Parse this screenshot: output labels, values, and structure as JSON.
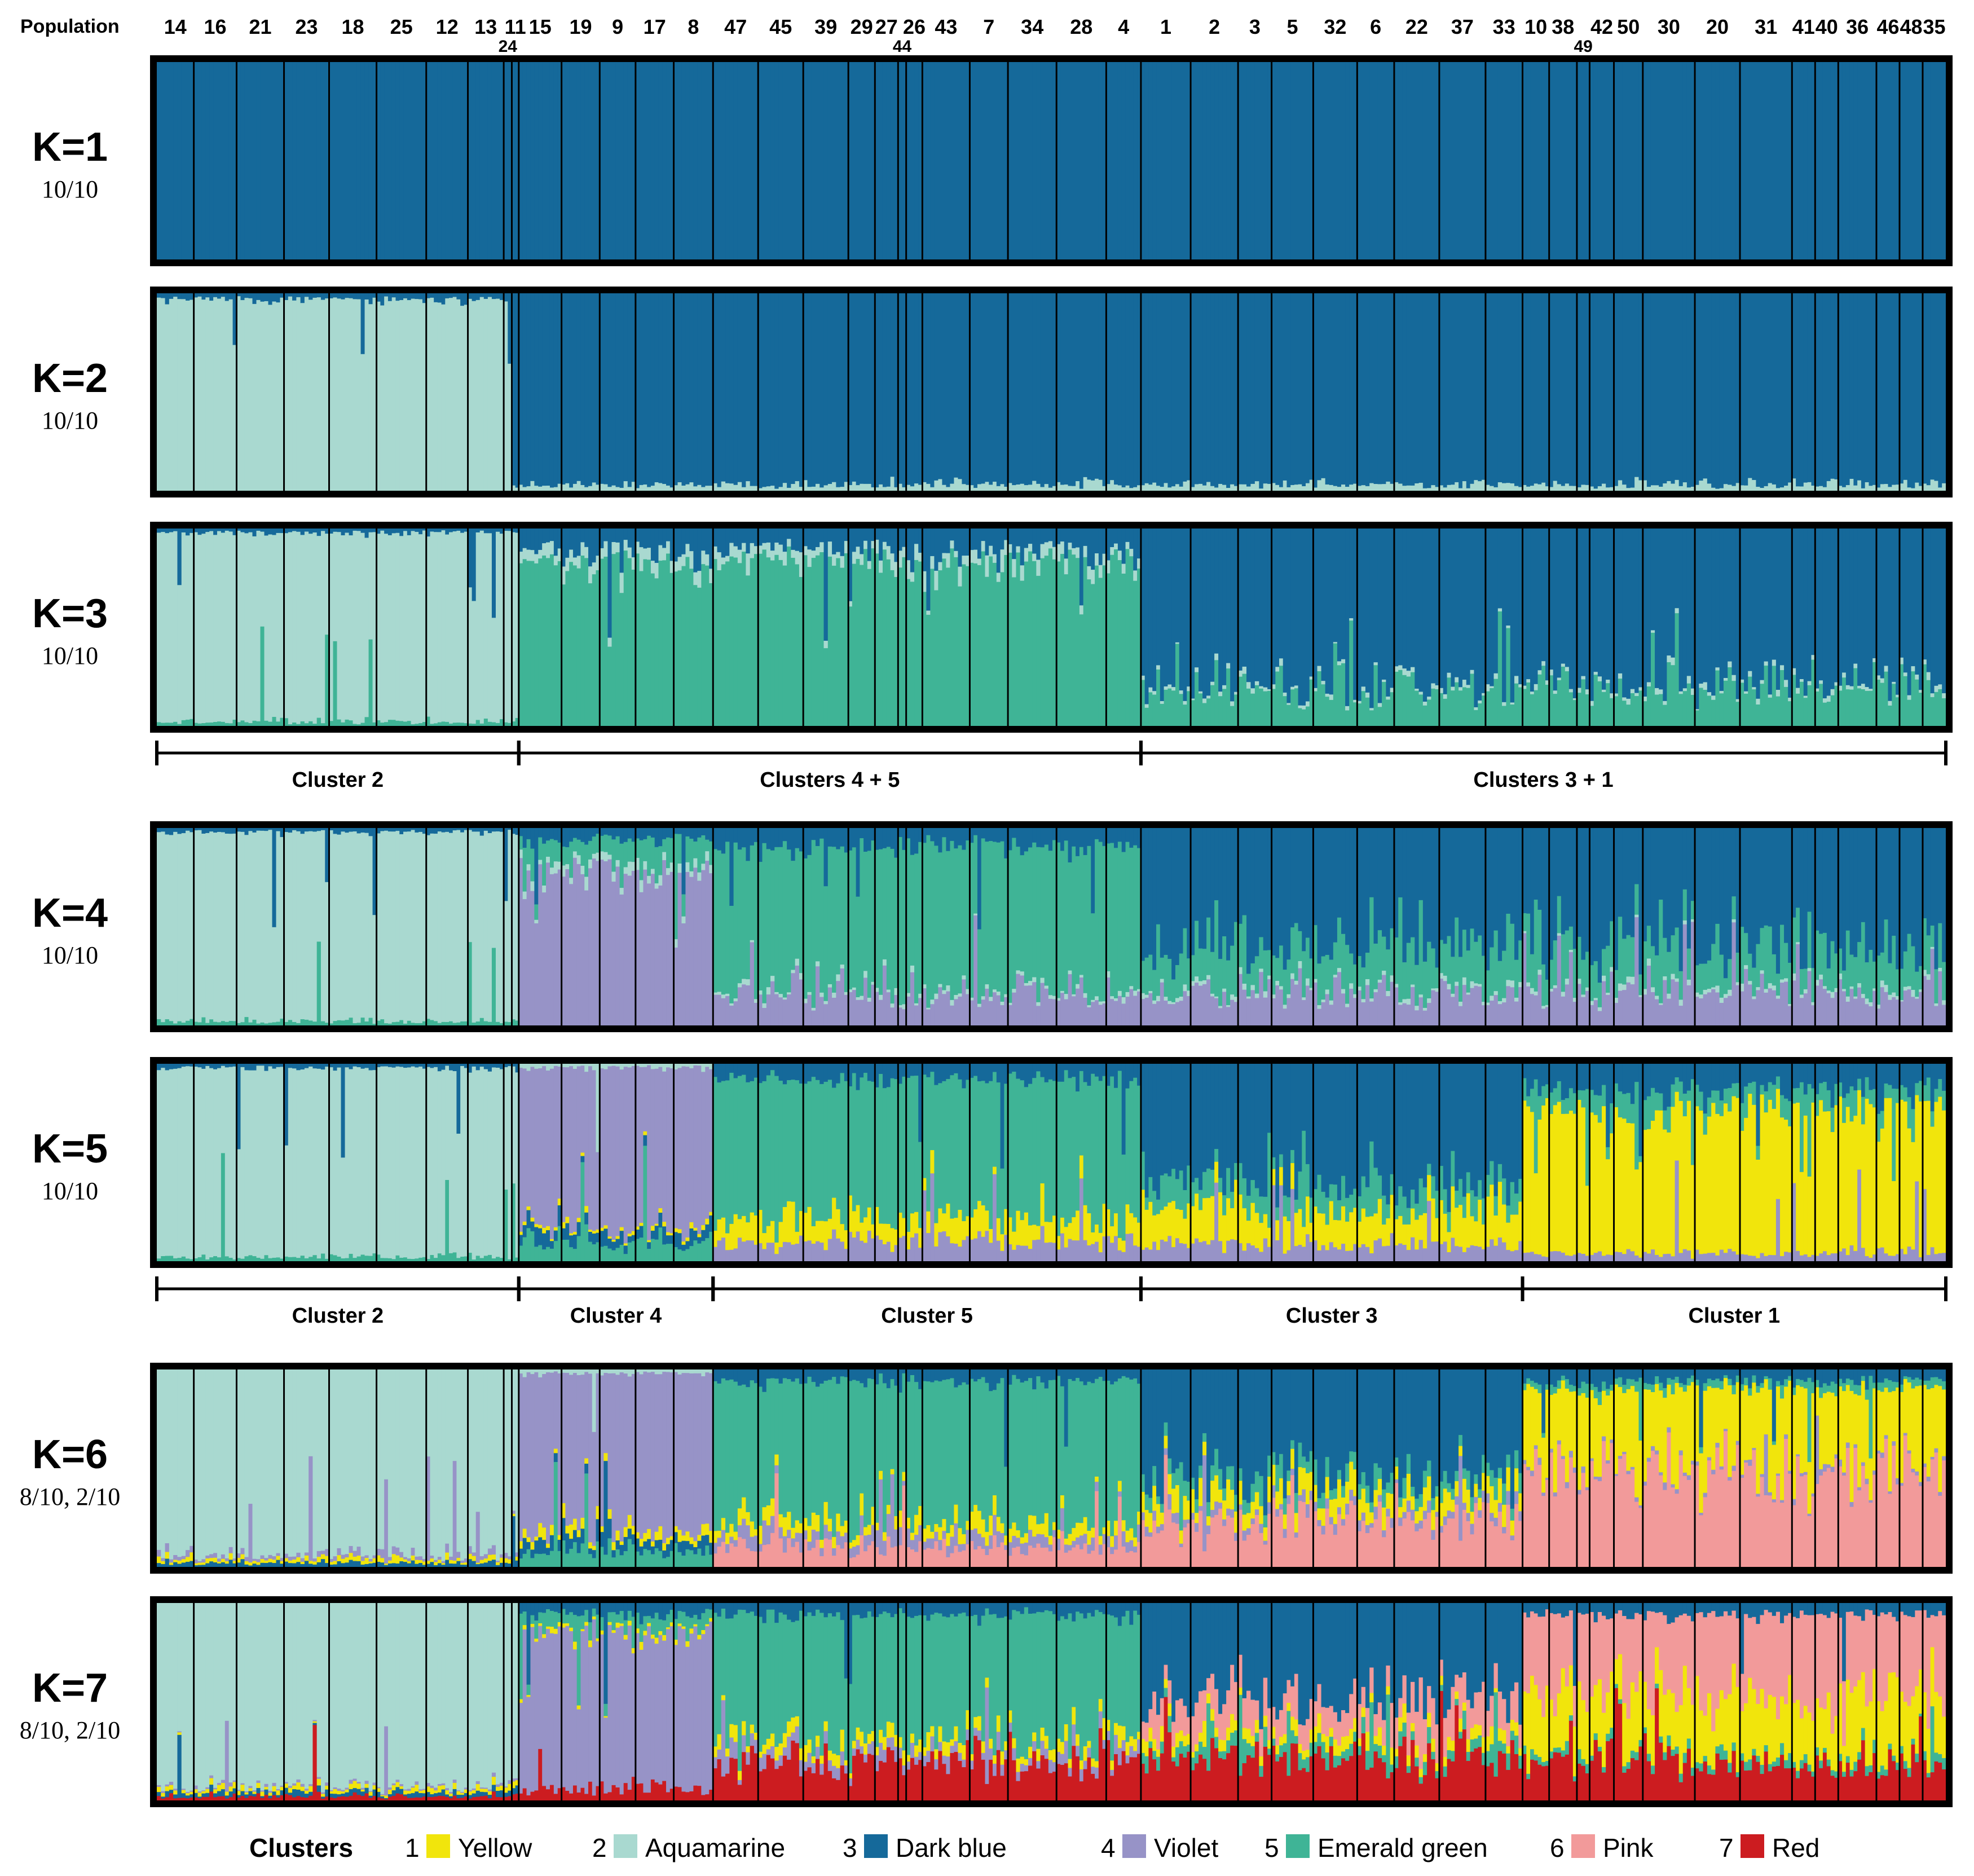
{
  "header_label": "Population",
  "populations": [
    {
      "id": "14",
      "w": 64
    },
    {
      "id": "16",
      "w": 74
    },
    {
      "id": "21",
      "w": 82
    },
    {
      "id": "23",
      "w": 78
    },
    {
      "id": "18",
      "w": 82
    },
    {
      "id": "25",
      "w": 86
    },
    {
      "id": "12",
      "w": 72
    },
    {
      "id": "13",
      "w": 62
    },
    {
      "id": "24",
      "w": 14
    },
    {
      "id": "11",
      "w": 12
    },
    {
      "id": "15",
      "w": 74
    },
    {
      "id": "19",
      "w": 66
    },
    {
      "id": "9",
      "w": 62
    },
    {
      "id": "17",
      "w": 66
    },
    {
      "id": "8",
      "w": 68
    },
    {
      "id": "47",
      "w": 78
    },
    {
      "id": "45",
      "w": 78
    },
    {
      "id": "39",
      "w": 78
    },
    {
      "id": "29",
      "w": 46
    },
    {
      "id": "27",
      "w": 40
    },
    {
      "id": "44",
      "w": 14
    },
    {
      "id": "26",
      "w": 28
    },
    {
      "id": "43",
      "w": 82
    },
    {
      "id": "7",
      "w": 66
    },
    {
      "id": "34",
      "w": 84
    },
    {
      "id": "28",
      "w": 86
    },
    {
      "id": "4",
      "w": 60
    },
    {
      "id": "1",
      "w": 86
    },
    {
      "id": "2",
      "w": 82
    },
    {
      "id": "3",
      "w": 58
    },
    {
      "id": "5",
      "w": 72
    },
    {
      "id": "32",
      "w": 76
    },
    {
      "id": "6",
      "w": 64
    },
    {
      "id": "22",
      "w": 78
    },
    {
      "id": "37",
      "w": 80
    },
    {
      "id": "33",
      "w": 64
    },
    {
      "id": "10",
      "w": 46
    },
    {
      "id": "38",
      "w": 48
    },
    {
      "id": "49",
      "w": 22
    },
    {
      "id": "42",
      "w": 42
    },
    {
      "id": "50",
      "w": 50
    },
    {
      "id": "30",
      "w": 90
    },
    {
      "id": "20",
      "w": 78
    },
    {
      "id": "31",
      "w": 90
    },
    {
      "id": "41",
      "w": 40
    },
    {
      "id": "40",
      "w": 40
    },
    {
      "id": "36",
      "w": 66
    },
    {
      "id": "46",
      "w": 40
    },
    {
      "id": "48",
      "w": 40
    },
    {
      "id": "35",
      "w": 40
    }
  ],
  "colors": {
    "1": "#f1e50c",
    "2": "#a9d9d0",
    "3": "#15699a",
    "4": "#9793c7",
    "5": "#3fb496",
    "6": "#f29a9a",
    "7": "#cc1c20"
  },
  "panels": [
    {
      "k": "K=1",
      "runs": "10/10"
    },
    {
      "k": "K=2",
      "runs": "10/10"
    },
    {
      "k": "K=3",
      "runs": "10/10"
    },
    {
      "k": "K=4",
      "runs": "10/10"
    },
    {
      "k": "K=5",
      "runs": "10/10"
    },
    {
      "k": "K=6",
      "runs": "8/10, 2/10"
    },
    {
      "k": "K=7",
      "runs": "8/10, 2/10"
    }
  ],
  "cluster_brackets_k3": [
    {
      "label": "Cluster 2",
      "from": "14",
      "to": "11"
    },
    {
      "label": "Clusters 4 + 5",
      "from": "15",
      "to": "4"
    },
    {
      "label": "Clusters 3 + 1",
      "from": "1",
      "to": "35"
    }
  ],
  "cluster_brackets_k5": [
    {
      "label": "Cluster 2",
      "from": "14",
      "to": "11"
    },
    {
      "label": "Cluster 4",
      "from": "15",
      "to": "8"
    },
    {
      "label": "Cluster 5",
      "from": "47",
      "to": "4"
    },
    {
      "label": "Cluster 3",
      "from": "1",
      "to": "33"
    },
    {
      "label": "Cluster 1",
      "from": "10",
      "to": "35"
    }
  ],
  "legend": {
    "title": "Clusters",
    "items": [
      {
        "num": "1",
        "name": "Yellow",
        "color": "#f1e50c"
      },
      {
        "num": "2",
        "name": "Aquamarine",
        "color": "#a9d9d0"
      },
      {
        "num": "3",
        "name": "Dark blue",
        "color": "#15699a"
      },
      {
        "num": "4",
        "name": "Violet",
        "color": "#9793c7"
      },
      {
        "num": "5",
        "name": "Emerald green",
        "color": "#3fb496"
      },
      {
        "num": "6",
        "name": "Pink",
        "color": "#f29a9a"
      },
      {
        "num": "7",
        "name": "Red",
        "color": "#cc1c20"
      }
    ]
  },
  "chart_data": {
    "type": "bar",
    "description_kind": "stacked ancestry proportions (STRUCTURE) per population, K = 1 to 7",
    "categories": [
      "14",
      "16",
      "21",
      "23",
      "18",
      "25",
      "12",
      "13",
      "24",
      "11",
      "15",
      "19",
      "9",
      "17",
      "8",
      "47",
      "45",
      "39",
      "29",
      "27",
      "44",
      "26",
      "43",
      "7",
      "34",
      "28",
      "4",
      "1",
      "2",
      "3",
      "5",
      "32",
      "6",
      "22",
      "37",
      "33",
      "10",
      "38",
      "49",
      "42",
      "50",
      "30",
      "20",
      "31",
      "41",
      "40",
      "36",
      "46",
      "48",
      "35"
    ],
    "ylim": [
      0,
      1
    ],
    "k_panels": [
      {
        "k": 1,
        "proportions": {
          "3": 1.0
        }
      },
      {
        "k": 2,
        "groups": [
          {
            "pops": [
              "14",
              "16",
              "21",
              "23",
              "18",
              "25",
              "12",
              "13",
              "24"
            ],
            "mix": {
              "2": 0.97,
              "3": 0.03
            }
          },
          {
            "pops": [
              "11",
              "15",
              "19",
              "9",
              "17",
              "8",
              "47",
              "45",
              "39",
              "29",
              "27",
              "44",
              "26",
              "43",
              "7",
              "34",
              "28",
              "4",
              "1",
              "2",
              "3",
              "5",
              "32",
              "6",
              "22",
              "37",
              "33",
              "10",
              "38",
              "49",
              "42",
              "50",
              "30",
              "20",
              "31",
              "41",
              "40",
              "36",
              "46",
              "48",
              "35"
            ],
            "mix": {
              "3": 0.97,
              "2": 0.03
            }
          }
        ]
      },
      {
        "k": 3,
        "groups": [
          {
            "pops": [
              "14",
              "16",
              "21",
              "23",
              "18",
              "25",
              "12",
              "13",
              "24",
              "11"
            ],
            "mix": {
              "2": 0.96,
              "3": 0.02,
              "5": 0.02
            }
          },
          {
            "pops": [
              "15",
              "19",
              "9",
              "17",
              "8",
              "47",
              "45",
              "39",
              "29",
              "27",
              "44",
              "26",
              "43",
              "7",
              "34",
              "28",
              "4"
            ],
            "mix": {
              "5": 0.82,
              "3": 0.12,
              "2": 0.06
            }
          },
          {
            "pops": [
              "1",
              "2",
              "3",
              "5",
              "32",
              "6",
              "22",
              "37",
              "33",
              "10",
              "38",
              "49",
              "42",
              "50",
              "30",
              "20",
              "31",
              "41",
              "40",
              "36",
              "46",
              "48",
              "35"
            ],
            "mix": {
              "3": 0.8,
              "5": 0.18,
              "2": 0.02
            }
          }
        ]
      },
      {
        "k": 4,
        "groups": [
          {
            "pops": [
              "14",
              "16",
              "21",
              "23",
              "18",
              "25",
              "12",
              "13",
              "24",
              "11"
            ],
            "mix": {
              "2": 0.96,
              "5": 0.02,
              "3": 0.02
            }
          },
          {
            "pops": [
              "15",
              "19",
              "9",
              "17",
              "8"
            ],
            "mix": {
              "4": 0.78,
              "5": 0.12,
              "3": 0.06,
              "2": 0.04
            }
          },
          {
            "pops": [
              "47",
              "45",
              "39",
              "29",
              "27",
              "44",
              "26",
              "43",
              "7",
              "34",
              "28",
              "4"
            ],
            "mix": {
              "5": 0.72,
              "4": 0.16,
              "3": 0.1,
              "2": 0.02
            }
          },
          {
            "pops": [
              "1",
              "2",
              "3",
              "5",
              "32",
              "6",
              "22",
              "37",
              "33",
              "10",
              "38",
              "49",
              "42",
              "50",
              "30",
              "20",
              "31",
              "41",
              "40",
              "36",
              "46",
              "48",
              "35"
            ],
            "mix": {
              "3": 0.62,
              "5": 0.2,
              "4": 0.16,
              "2": 0.02
            }
          }
        ]
      },
      {
        "k": 5,
        "groups": [
          {
            "pops": [
              "14",
              "16",
              "21",
              "23",
              "18",
              "25",
              "12",
              "13",
              "24",
              "11"
            ],
            "mix": {
              "2": 0.96,
              "5": 0.02,
              "3": 0.02
            }
          },
          {
            "pops": [
              "15",
              "19",
              "9",
              "17",
              "8"
            ],
            "mix": {
              "4": 0.8,
              "5": 0.1,
              "3": 0.06,
              "1": 0.02,
              "2": 0.02
            }
          },
          {
            "pops": [
              "47",
              "45",
              "39",
              "29",
              "27",
              "44",
              "26",
              "43",
              "7",
              "34",
              "28",
              "4"
            ],
            "mix": {
              "5": 0.7,
              "1": 0.12,
              "4": 0.1,
              "3": 0.08
            }
          },
          {
            "pops": [
              "1",
              "2",
              "3",
              "5",
              "32",
              "6",
              "22",
              "37",
              "33"
            ],
            "mix": {
              "3": 0.62,
              "1": 0.18,
              "5": 0.12,
              "4": 0.08
            }
          },
          {
            "pops": [
              "10",
              "38",
              "49",
              "42",
              "50",
              "30",
              "20",
              "31",
              "41",
              "40",
              "36",
              "46",
              "48",
              "35"
            ],
            "mix": {
              "1": 0.72,
              "3": 0.14,
              "5": 0.1,
              "4": 0.04
            }
          }
        ]
      },
      {
        "k": 6,
        "groups": [
          {
            "pops": [
              "14",
              "16",
              "21",
              "23",
              "18",
              "25",
              "12",
              "13",
              "24",
              "11"
            ],
            "mix": {
              "2": 0.94,
              "1": 0.02,
              "4": 0.02,
              "3": 0.02
            }
          },
          {
            "pops": [
              "15",
              "19",
              "9",
              "17",
              "8"
            ],
            "mix": {
              "4": 0.8,
              "5": 0.08,
              "3": 0.06,
              "1": 0.04,
              "2": 0.02
            }
          },
          {
            "pops": [
              "47",
              "45",
              "39",
              "29",
              "27",
              "44",
              "26",
              "43",
              "7",
              "34",
              "28",
              "4"
            ],
            "mix": {
              "5": 0.72,
              "6": 0.1,
              "1": 0.06,
              "4": 0.06,
              "3": 0.06
            }
          },
          {
            "pops": [
              "1",
              "2",
              "3",
              "5",
              "32",
              "6",
              "22",
              "37",
              "33"
            ],
            "mix": {
              "3": 0.56,
              "6": 0.22,
              "1": 0.1,
              "5": 0.08,
              "4": 0.04
            }
          },
          {
            "pops": [
              "10",
              "38",
              "49",
              "42",
              "50",
              "30",
              "20",
              "31",
              "41",
              "40",
              "36",
              "46",
              "48",
              "35"
            ],
            "mix": {
              "6": 0.5,
              "1": 0.38,
              "3": 0.06,
              "5": 0.04,
              "4": 0.02
            }
          }
        ]
      },
      {
        "k": 7,
        "groups": [
          {
            "pops": [
              "14",
              "16",
              "21",
              "23",
              "18",
              "25",
              "12",
              "13",
              "24",
              "11"
            ],
            "mix": {
              "2": 0.93,
              "7": 0.02,
              "1": 0.02,
              "4": 0.01,
              "3": 0.02
            }
          },
          {
            "pops": [
              "15",
              "19",
              "9",
              "17",
              "8"
            ],
            "mix": {
              "4": 0.78,
              "7": 0.06,
              "5": 0.08,
              "3": 0.06,
              "1": 0.02
            }
          },
          {
            "pops": [
              "47",
              "45",
              "39",
              "29",
              "27",
              "44",
              "26",
              "43",
              "7",
              "34",
              "28",
              "4"
            ],
            "mix": {
              "5": 0.62,
              "7": 0.2,
              "1": 0.06,
              "4": 0.06,
              "3": 0.06
            }
          },
          {
            "pops": [
              "1",
              "2",
              "3",
              "5",
              "32",
              "6",
              "22",
              "37",
              "33"
            ],
            "mix": {
              "3": 0.5,
              "7": 0.22,
              "6": 0.16,
              "1": 0.06,
              "5": 0.06
            }
          },
          {
            "pops": [
              "10",
              "38",
              "49",
              "42",
              "50",
              "30",
              "20",
              "31",
              "41",
              "40",
              "36",
              "46",
              "48",
              "35"
            ],
            "mix": {
              "6": 0.4,
              "1": 0.3,
              "7": 0.2,
              "3": 0.06,
              "5": 0.04
            }
          }
        ]
      }
    ]
  }
}
